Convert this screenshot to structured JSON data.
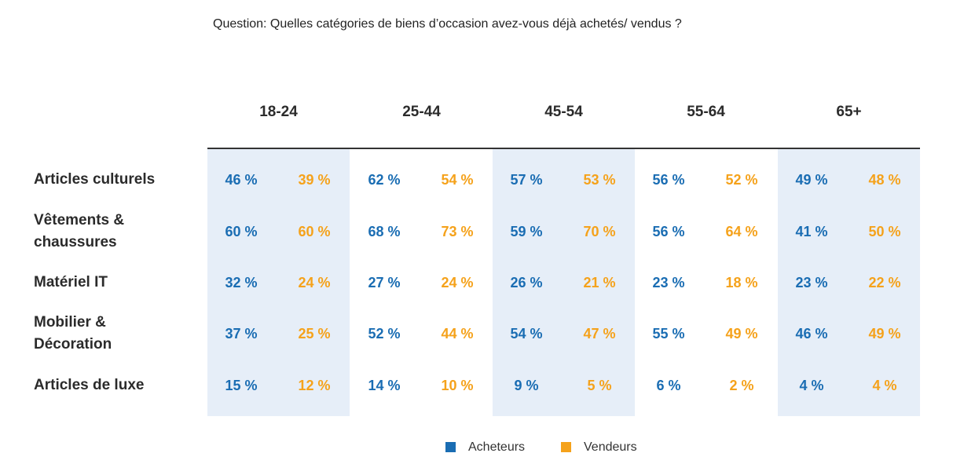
{
  "question": "Question: Quelles catégories de biens d’occasion avez-vous déjà achetés/ vendus ?",
  "colors": {
    "buyers": "#1a6db3",
    "sellers": "#f5a21b",
    "band": "#e6eef8"
  },
  "chart_data": {
    "type": "table",
    "title": "Question: Quelles catégories de biens d’occasion avez-vous déjà achetés/ vendus ?",
    "age_groups": [
      "18-24",
      "25-44",
      "45-54",
      "55-64",
      "65+"
    ],
    "series": [
      {
        "name": "Acheteurs",
        "color": "#1a6db3"
      },
      {
        "name": "Vendeurs",
        "color": "#f5a21b"
      }
    ],
    "rows": [
      {
        "category": "Articles culturels",
        "buyers": [
          46,
          62,
          57,
          56,
          49
        ],
        "sellers": [
          39,
          54,
          53,
          52,
          48
        ]
      },
      {
        "category": "Vêtements & chaussures",
        "buyers": [
          60,
          68,
          59,
          56,
          41
        ],
        "sellers": [
          60,
          73,
          70,
          64,
          50
        ]
      },
      {
        "category": "Matériel IT",
        "buyers": [
          32,
          27,
          26,
          23,
          23
        ],
        "sellers": [
          24,
          24,
          21,
          18,
          22
        ]
      },
      {
        "category": "Mobilier & Décoration",
        "buyers": [
          37,
          52,
          54,
          55,
          46
        ],
        "sellers": [
          25,
          44,
          47,
          49,
          49
        ]
      },
      {
        "category": "Articles de luxe",
        "buyers": [
          15,
          14,
          9,
          6,
          4
        ],
        "sellers": [
          12,
          10,
          5,
          2,
          4
        ]
      }
    ],
    "unit": "%",
    "legend": [
      "Acheteurs",
      "Vendeurs"
    ],
    "legend_position": "bottom-center"
  },
  "display": {
    "age_labels": [
      "18-24",
      "25-44",
      "45-54",
      "55-64",
      "65+"
    ],
    "categories": [
      [
        "Articles culturels"
      ],
      [
        "Vêtements &",
        "chaussures"
      ],
      [
        "Matériel IT"
      ],
      [
        "Mobilier &",
        "Décoration"
      ],
      [
        "Articles de luxe"
      ]
    ],
    "legend": {
      "buyers": "Acheteurs",
      "sellers": "Vendeurs"
    }
  }
}
